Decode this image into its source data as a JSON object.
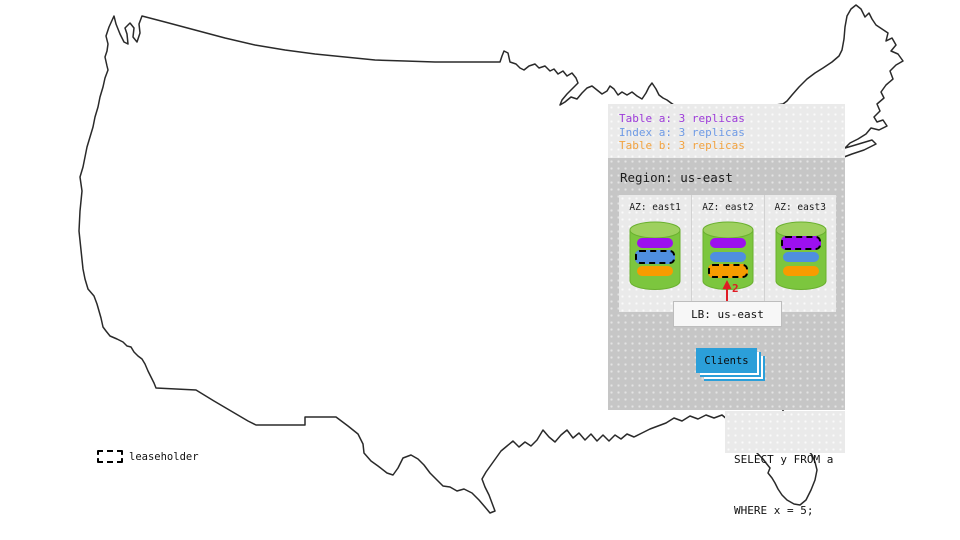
{
  "colors": {
    "cylinder_body": "#7cc63e",
    "cylinder_top": "#9ed05f",
    "cylinder_edge": "#6ab02f",
    "client_blue": "#2b9fd9",
    "arrow_red": "#e01b24",
    "map_line": "#2a2a2a"
  },
  "legend": {
    "items": [
      {
        "label": "Table a: 3 replicas",
        "color": "#9d3bd9"
      },
      {
        "label": "Index a: 3 replicas",
        "color": "#6f9be5"
      },
      {
        "label": "Table b: 3 replicas",
        "color": "#f2a341"
      }
    ]
  },
  "region": {
    "title": "Region: us-east",
    "azs": [
      {
        "label": "AZ: east1",
        "replicas": [
          {
            "name": "table-a",
            "color": "#9c10ef",
            "leaseholder": false
          },
          {
            "name": "index-a",
            "color": "#4f8fe0",
            "leaseholder": true
          },
          {
            "name": "table-b",
            "color": "#f79c00",
            "leaseholder": false
          }
        ]
      },
      {
        "label": "AZ: east2",
        "replicas": [
          {
            "name": "table-a",
            "color": "#9c10ef",
            "leaseholder": false
          },
          {
            "name": "index-a",
            "color": "#4f8fe0",
            "leaseholder": false
          },
          {
            "name": "table-b",
            "color": "#f79c00",
            "leaseholder": true
          }
        ]
      },
      {
        "label": "AZ: east3",
        "replicas": [
          {
            "name": "table-a",
            "color": "#9c10ef",
            "leaseholder": true
          },
          {
            "name": "index-a",
            "color": "#4f8fe0",
            "leaseholder": false
          },
          {
            "name": "table-b",
            "color": "#f79c00",
            "leaseholder": false
          }
        ]
      }
    ]
  },
  "load_balancer": {
    "label": "LB: us-east"
  },
  "clients": {
    "label": "Clients"
  },
  "annotation": {
    "step": "2"
  },
  "query": {
    "lines": [
      "SELECT y FROM a",
      "WHERE x = 5;"
    ]
  },
  "map_key": {
    "label": "leaseholder"
  }
}
